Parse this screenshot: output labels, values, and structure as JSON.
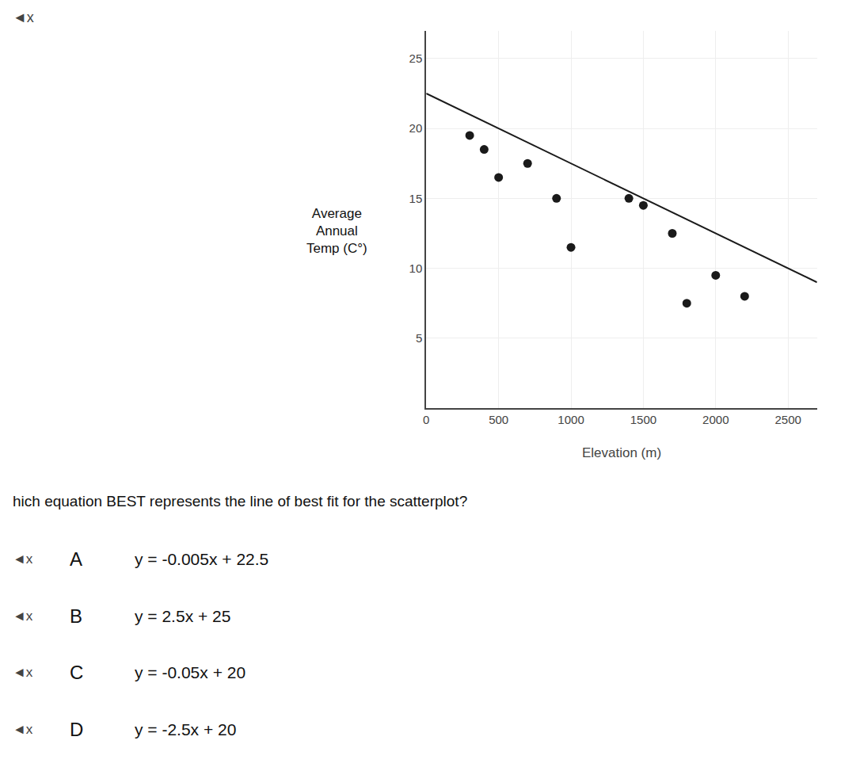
{
  "chart_data": {
    "type": "scatter",
    "xlabel": "Elevation (m)",
    "ylabel": [
      "Average",
      "Annual",
      "Temp (C°)"
    ],
    "series": [
      {
        "type": "scatter",
        "marker": "circle",
        "color": "#1a1a1a",
        "x": [
          300,
          400,
          500,
          700,
          900,
          1000,
          1400,
          1500,
          1700,
          1800,
          2000,
          2200
        ],
        "values": [
          19.5,
          18.5,
          16.5,
          17.5,
          15.0,
          11.5,
          15.0,
          14.5,
          12.5,
          7.5,
          9.5,
          8.0
        ]
      },
      {
        "type": "line",
        "line_style": "solid",
        "color": "#1a1a1a",
        "x": [
          0,
          2700
        ],
        "values": [
          22.5,
          9.0
        ]
      }
    ],
    "xlim": [
      0,
      2700
    ],
    "xticks": [
      0,
      500,
      1000,
      1500,
      2000,
      2500
    ],
    "ylim": [
      0,
      27
    ],
    "yticks": [
      5,
      10,
      15,
      20,
      25
    ],
    "grid": true,
    "annotations": [
      "◄x",
      "hich equation BEST represents the line of best fit for the scatterplot?",
      "◄x",
      "A",
      "y = -0.005x + 22.5",
      "◄x",
      "B",
      "y = 2.5x + 25",
      "◄x",
      "C",
      "y = -0.05x + 20",
      "◄x",
      "D",
      "y = -2.5x + 20"
    ]
  }
}
